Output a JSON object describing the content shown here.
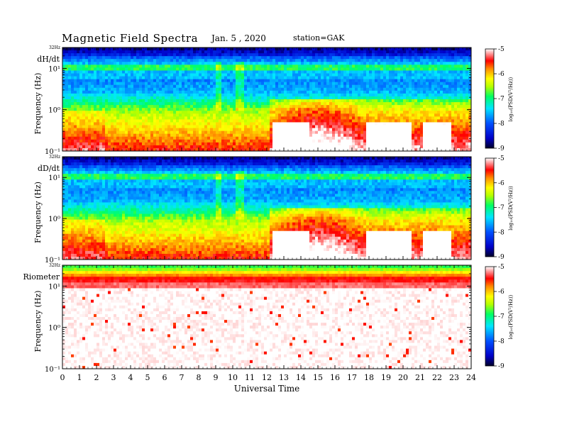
{
  "header": {
    "title": "Magnetic  Field  Spectra",
    "date": "Jan. 5  , 2020",
    "station": "station=GAK"
  },
  "chart_data": [
    {
      "type": "heatmap",
      "panel_label": "dH/dt",
      "ylabel": "Frequency  (Hz)",
      "xlabel": "",
      "top_freq_label": "32Hz",
      "y_ticks": [
        "10¹",
        "10⁰",
        "10⁻¹"
      ],
      "y_scale": "log",
      "ylim": [
        0.1,
        32
      ],
      "xlim": [
        0,
        24
      ],
      "colorbar": {
        "label": "log₁₀(PSD(V²/Hz))",
        "ticks": [
          "-5",
          "-6",
          "-7",
          "-8",
          "-9"
        ],
        "range": [
          -9,
          -5
        ]
      },
      "features": {
        "enhanced_low_freq_onset_ut": 12.2,
        "broadband_bursts_ut": [
          9.0,
          10.6
        ],
        "line_frequency_hz": 8
      }
    },
    {
      "type": "heatmap",
      "panel_label": "dD/dt",
      "ylabel": "Frequency  (Hz)",
      "xlabel": "",
      "top_freq_label": "32Hz",
      "y_ticks": [
        "10¹",
        "10⁰",
        "10⁻¹"
      ],
      "y_scale": "log",
      "ylim": [
        0.1,
        32
      ],
      "xlim": [
        0,
        24
      ],
      "colorbar": {
        "label": "log₁₀(PSD(V²/Hz))",
        "ticks": [
          "-5",
          "-6",
          "-7",
          "-8",
          "-9"
        ],
        "range": [
          -9,
          -5
        ]
      },
      "features": {
        "enhanced_low_freq_onset_ut": 12.2,
        "broadband_bursts_ut": [
          9.0,
          10.6
        ],
        "line_frequency_hz": 8
      }
    },
    {
      "type": "heatmap",
      "panel_label": "Riometer",
      "ylabel": "Frequency  (Hz)",
      "xlabel": "Universal  Time",
      "top_freq_label": "32Hz",
      "y_ticks": [
        "10¹",
        "10⁰",
        "10⁻¹"
      ],
      "y_scale": "log",
      "ylim": [
        0.1,
        32
      ],
      "xlim": [
        0,
        24
      ],
      "x_ticks": [
        "0",
        "1",
        "2",
        "3",
        "4",
        "5",
        "6",
        "7",
        "8",
        "9",
        "10",
        "11",
        "12",
        "13",
        "14",
        "15",
        "16",
        "17",
        "18",
        "19",
        "20",
        "21",
        "22",
        "23",
        "24"
      ],
      "colorbar": {
        "label": "log₁₀(PSD(V²/Hz))",
        "ticks": [
          "-5",
          "-6",
          "-7",
          "-8",
          "-9"
        ],
        "range": [
          -9,
          -5
        ]
      }
    }
  ],
  "colors": {
    "scale": [
      "#00003c",
      "#0000ff",
      "#00ffff",
      "#00ff00",
      "#ffff00",
      "#ff0000",
      "#ffffff"
    ]
  }
}
